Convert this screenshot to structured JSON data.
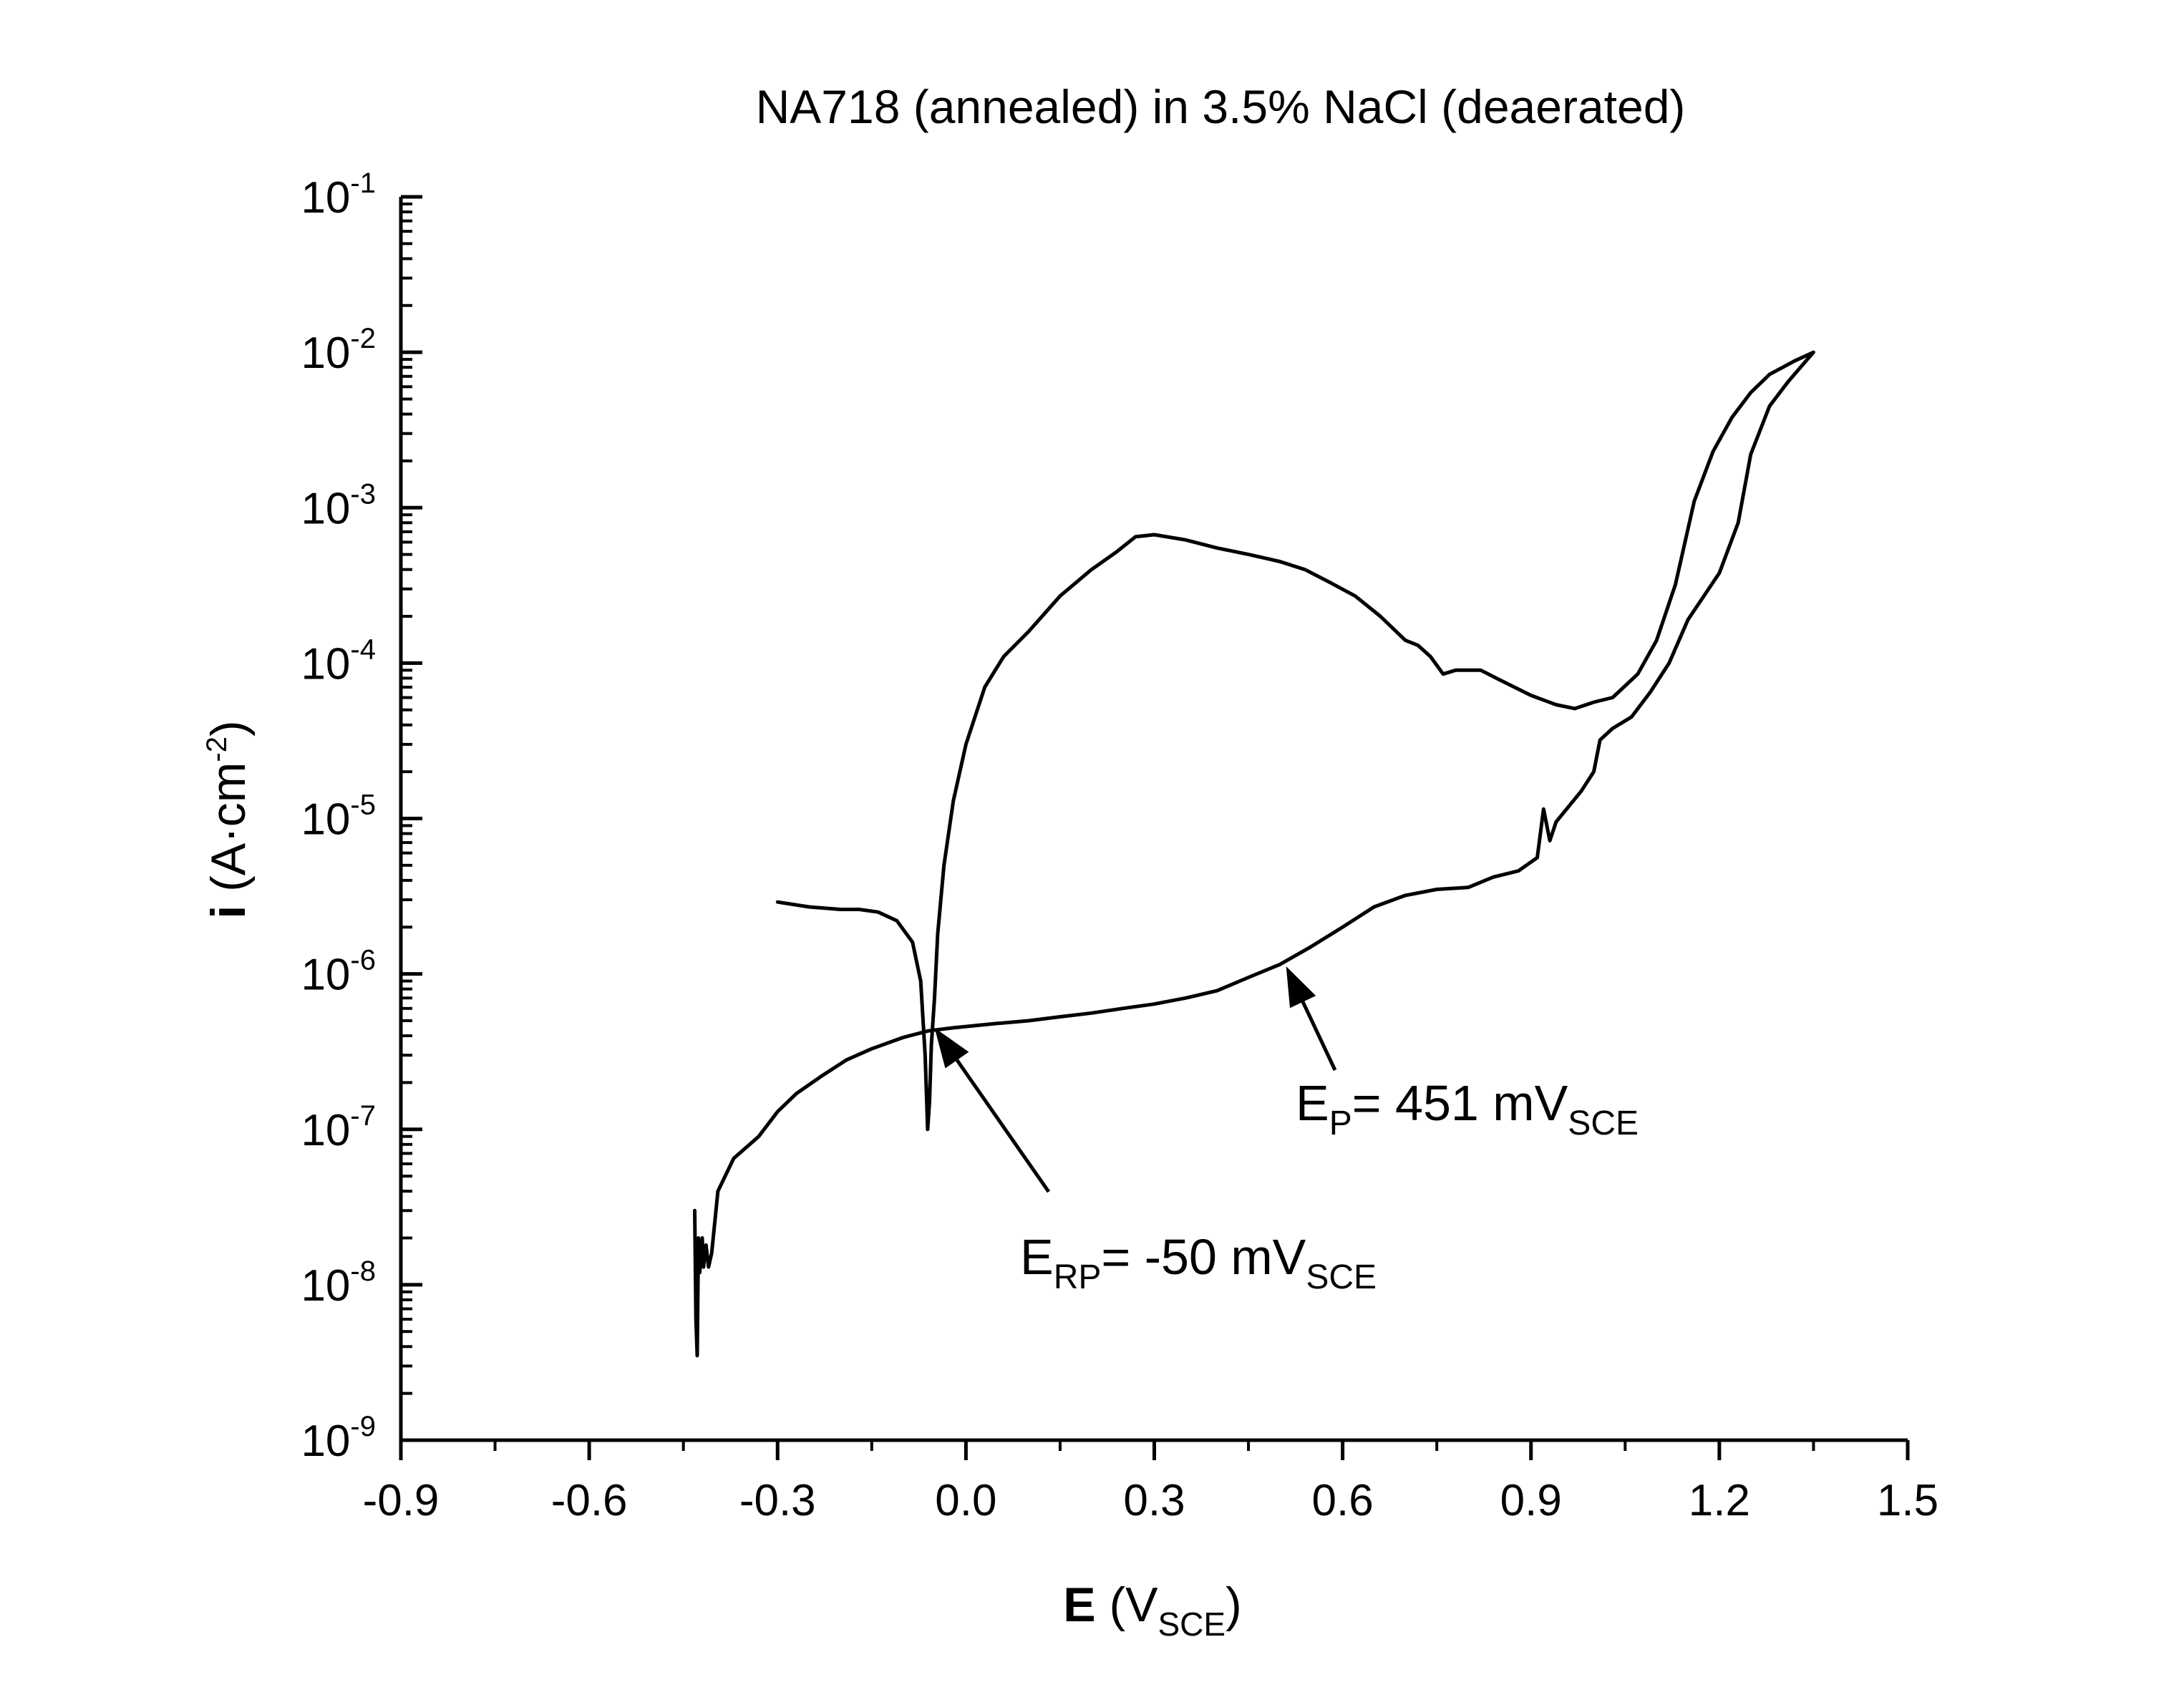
{
  "chart_data": {
    "type": "line",
    "title": "NA718 (annealed) in 3.5% NaCl (deaerated)",
    "xlabel": {
      "symbol": "E",
      "open": " (V",
      "sub": "SCE",
      "close": ")"
    },
    "ylabel": {
      "symbol": "i",
      "open": " (A·cm",
      "sup": "-2",
      "close": ")"
    },
    "x_scale": "linear",
    "y_scale": "log",
    "xlim": [
      -0.9,
      1.5
    ],
    "ylim": [
      1e-09,
      0.1
    ],
    "x_ticks": [
      "-0.9",
      "-0.6",
      "-0.3",
      "0.0",
      "0.3",
      "0.6",
      "0.9",
      "1.2",
      "1.5"
    ],
    "y_ticks": [
      {
        "base": "10",
        "exp": "-9"
      },
      {
        "base": "10",
        "exp": "-8"
      },
      {
        "base": "10",
        "exp": "-7"
      },
      {
        "base": "10",
        "exp": "-6"
      },
      {
        "base": "10",
        "exp": "-5"
      },
      {
        "base": "10",
        "exp": "-4"
      },
      {
        "base": "10",
        "exp": "-3"
      },
      {
        "base": "10",
        "exp": "-2"
      },
      {
        "base": "10",
        "exp": "-1"
      }
    ],
    "grid": false,
    "legend": "none",
    "line_color": "#000000",
    "series": [
      {
        "points": [
          [
            -0.432,
            3e-08
          ],
          [
            -0.43,
            6e-09
          ],
          [
            -0.428,
            3.5e-09
          ],
          [
            -0.426,
            2e-08
          ],
          [
            -0.424,
            1.2e-08
          ],
          [
            -0.42,
            2e-08
          ],
          [
            -0.418,
            1.3e-08
          ],
          [
            -0.414,
            1.8e-08
          ],
          [
            -0.41,
            1.3e-08
          ],
          [
            -0.405,
            1.6e-08
          ],
          [
            -0.395,
            4e-08
          ],
          [
            -0.37,
            6.5e-08
          ],
          [
            -0.33,
            9e-08
          ],
          [
            -0.3,
            1.3e-07
          ],
          [
            -0.27,
            1.7e-07
          ],
          [
            -0.23,
            2.2e-07
          ],
          [
            -0.19,
            2.8e-07
          ],
          [
            -0.15,
            3.3e-07
          ],
          [
            -0.1,
            3.9e-07
          ],
          [
            -0.06,
            4.3e-07
          ],
          [
            -0.02,
            4.5e-07
          ],
          [
            0.05,
            4.8e-07
          ],
          [
            0.1,
            5e-07
          ],
          [
            0.15,
            5.3e-07
          ],
          [
            0.2,
            5.6e-07
          ],
          [
            0.25,
            6e-07
          ],
          [
            0.3,
            6.4e-07
          ],
          [
            0.35,
            7e-07
          ],
          [
            0.4,
            7.8e-07
          ],
          [
            0.45,
            9.5e-07
          ],
          [
            0.5,
            1.15e-06
          ],
          [
            0.55,
            1.5e-06
          ],
          [
            0.6,
            2e-06
          ],
          [
            0.65,
            2.7e-06
          ],
          [
            0.7,
            3.2e-06
          ],
          [
            0.75,
            3.5e-06
          ],
          [
            0.8,
            3.6e-06
          ],
          [
            0.84,
            4.2e-06
          ],
          [
            0.88,
            4.6e-06
          ],
          [
            0.91,
            5.6e-06
          ],
          [
            0.92,
            1.15e-05
          ],
          [
            0.93,
            7.2e-06
          ],
          [
            0.94,
            9.5e-06
          ],
          [
            0.98,
            1.5e-05
          ],
          [
            1.0,
            2e-05
          ],
          [
            1.01,
            3.2e-05
          ],
          [
            1.03,
            3.8e-05
          ],
          [
            1.06,
            4.5e-05
          ],
          [
            1.09,
            6.5e-05
          ],
          [
            1.12,
            0.0001
          ],
          [
            1.15,
            0.00019
          ],
          [
            1.2,
            0.00038
          ],
          [
            1.23,
            0.0008
          ],
          [
            1.25,
            0.0022
          ],
          [
            1.28,
            0.0045
          ],
          [
            1.31,
            0.0065
          ],
          [
            1.35,
            0.01
          ],
          [
            1.32,
            0.0088
          ],
          [
            1.28,
            0.0072
          ],
          [
            1.25,
            0.0055
          ],
          [
            1.22,
            0.0038
          ],
          [
            1.19,
            0.0023
          ],
          [
            1.16,
            0.0011
          ],
          [
            1.13,
            0.00032
          ],
          [
            1.1,
            0.00014
          ],
          [
            1.07,
            8.5e-05
          ],
          [
            1.03,
            6e-05
          ],
          [
            1.0,
            5.6e-05
          ],
          [
            0.97,
            5.1e-05
          ],
          [
            0.94,
            5.4e-05
          ],
          [
            0.9,
            6.2e-05
          ],
          [
            0.85,
            7.8e-05
          ],
          [
            0.82,
            9e-05
          ],
          [
            0.78,
            9e-05
          ],
          [
            0.76,
            8.5e-05
          ],
          [
            0.74,
            0.00011
          ],
          [
            0.72,
            0.00013
          ],
          [
            0.7,
            0.00014
          ],
          [
            0.66,
            0.0002
          ],
          [
            0.62,
            0.00027
          ],
          [
            0.58,
            0.00033
          ],
          [
            0.54,
            0.0004
          ],
          [
            0.5,
            0.00045
          ],
          [
            0.45,
            0.0005
          ],
          [
            0.4,
            0.00055
          ],
          [
            0.35,
            0.00062
          ],
          [
            0.3,
            0.00067
          ],
          [
            0.27,
            0.00065
          ],
          [
            0.24,
            0.00052
          ],
          [
            0.2,
            0.0004
          ],
          [
            0.15,
            0.00027
          ],
          [
            0.1,
            0.00016
          ],
          [
            0.06,
            0.00011
          ],
          [
            0.03,
            7e-05
          ],
          [
            0.0,
            3e-05
          ],
          [
            -0.02,
            1.3e-05
          ],
          [
            -0.035,
            5e-06
          ],
          [
            -0.045,
            1.8e-06
          ],
          [
            -0.05,
            7e-07
          ],
          [
            -0.055,
            3.5e-07
          ],
          [
            -0.058,
            1.5e-07
          ],
          [
            -0.061,
            1e-07
          ],
          [
            -0.065,
            3e-07
          ],
          [
            -0.072,
            9e-07
          ],
          [
            -0.085,
            1.6e-06
          ],
          [
            -0.11,
            2.2e-06
          ],
          [
            -0.14,
            2.5e-06
          ],
          [
            -0.17,
            2.6e-06
          ],
          [
            -0.2,
            2.6e-06
          ],
          [
            -0.25,
            2.7e-06
          ],
          [
            -0.3,
            2.9e-06
          ]
        ]
      }
    ],
    "annotations": [
      {
        "main": "E",
        "sub": "RP",
        "text": "= -50 mV",
        "sub2": "SCE",
        "x": -0.05,
        "y": 4.5e-07
      },
      {
        "main": "E",
        "sub": "P",
        "text": "= 451 mV",
        "sub2": "SCE",
        "x": 0.51,
        "y": 1.12e-06
      }
    ]
  }
}
